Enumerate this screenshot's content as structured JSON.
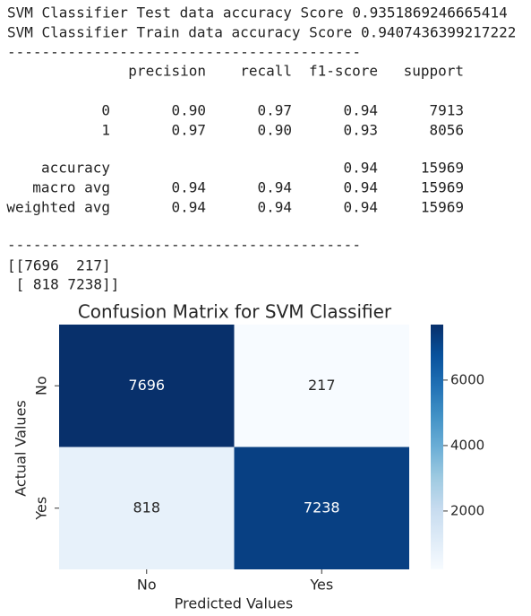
{
  "output": {
    "scores": [
      "SVM Classifier Test data accuracy Score 0.9351869246665414",
      "SVM Classifier Train data accuracy Score 0.9407436399217222"
    ],
    "separator": "-----------------------------------------",
    "report": {
      "header": [
        "precision",
        "recall",
        "f1-score",
        "support"
      ],
      "rows": [
        [
          "0",
          "0.90",
          "0.97",
          "0.94",
          "7913"
        ],
        [
          "1",
          "0.97",
          "0.90",
          "0.93",
          "8056"
        ],
        [
          "accuracy",
          null,
          null,
          "0.94",
          "15969"
        ],
        [
          "macro avg",
          "0.94",
          "0.94",
          "0.94",
          "15969"
        ],
        [
          "weighted avg",
          "0.94",
          "0.94",
          "0.94",
          "15969"
        ]
      ]
    },
    "matrix_lines": [
      "[[7696  217]",
      " [ 818 7238]]"
    ]
  },
  "chart_data": {
    "type": "heatmap",
    "title": "Confusion Matrix for SVM Classifier",
    "x_categories": [
      "No",
      "Yes"
    ],
    "y_categories": [
      "No",
      "Yes"
    ],
    "values": [
      [
        7696,
        217
      ],
      [
        818,
        7238
      ]
    ],
    "xlabel": "Predicted Values",
    "ylabel": "Actual Values",
    "colormap": "Blues",
    "clim": [
      217,
      7696
    ],
    "cticks": [
      2000,
      4000,
      6000
    ]
  }
}
